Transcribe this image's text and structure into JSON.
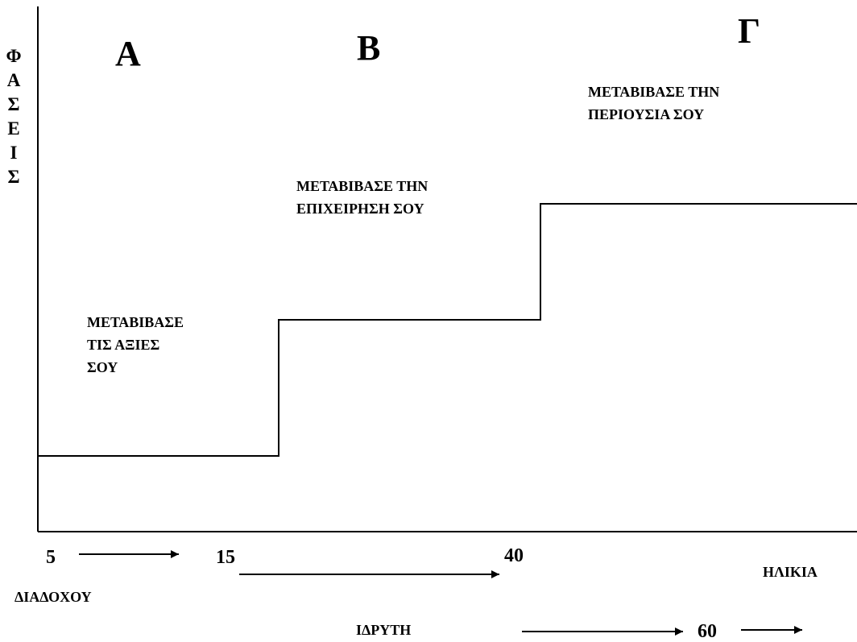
{
  "y_axis_label_letters": [
    "Φ",
    "Α",
    "Σ",
    "Ε",
    "Ι",
    "Σ"
  ],
  "phases": [
    "Α",
    "Β",
    "Γ"
  ],
  "phase_notes": [
    [
      "ΜΕΤΑΒΙΒΑΣΕ",
      "ΤΙΣ ΑΞΙΕΣ",
      "ΣΟΥ"
    ],
    [
      "ΜΕΤΑΒΙΒΑΣΕ ΤΗΝ",
      "ΕΠΙΧΕΙΡΗΣΗ ΣΟΥ"
    ],
    [
      "ΜΕΤΑΒΙΒΑΣΕ ΤΗΝ",
      "ΠΕΡΙΟΥΣΙΑ ΣΟΥ"
    ]
  ],
  "x_axis": {
    "label": "ΗΛΙΚΙΑ",
    "ticks": [
      "5",
      "15",
      "40",
      "60"
    ],
    "successor_label": "ΔΙΑΔΟΧΟΥ",
    "founder_label": "ΙΔΡΥΤΗ"
  }
}
